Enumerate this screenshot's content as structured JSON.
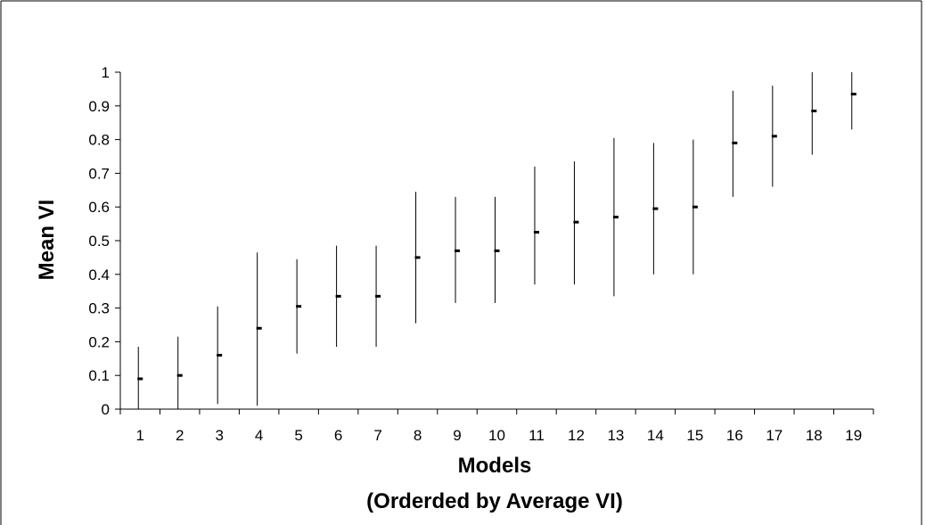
{
  "chart_data": {
    "type": "scatter",
    "subtype": "error-bar",
    "title": "",
    "xlabel": "Models",
    "xlabel_line2": "(Orderded by Average VI)",
    "ylabel": "Mean VI",
    "ylim": [
      0,
      1
    ],
    "yticks": [
      "0",
      "0.1",
      "0.2",
      "0.3",
      "0.4",
      "0.5",
      "0.6",
      "0.7",
      "0.8",
      "0.9",
      "1"
    ],
    "categories": [
      "1",
      "2",
      "3",
      "4",
      "5",
      "6",
      "7",
      "8",
      "9",
      "10",
      "11",
      "12",
      "13",
      "14",
      "15",
      "16",
      "17",
      "18",
      "19"
    ],
    "series": [
      {
        "mean": [
          0.09,
          0.1,
          0.16,
          0.24,
          0.305,
          0.335,
          0.335,
          0.45,
          0.47,
          0.47,
          0.525,
          0.555,
          0.57,
          0.595,
          0.6,
          0.79,
          0.81,
          0.885,
          0.935
        ],
        "low": [
          0.0,
          0.0,
          0.015,
          0.01,
          0.165,
          0.185,
          0.185,
          0.255,
          0.315,
          0.315,
          0.37,
          0.37,
          0.335,
          0.4,
          0.4,
          0.63,
          0.66,
          0.755,
          0.83
        ],
        "high": [
          0.185,
          0.215,
          0.305,
          0.465,
          0.445,
          0.485,
          0.485,
          0.645,
          0.63,
          0.63,
          0.72,
          0.735,
          0.805,
          0.79,
          0.8,
          0.945,
          0.96,
          1.0,
          1.0
        ]
      }
    ],
    "grid": false,
    "legend": "none",
    "colors": {
      "marks": "#000000",
      "frame": "#000000",
      "background": "#ffffff"
    }
  }
}
